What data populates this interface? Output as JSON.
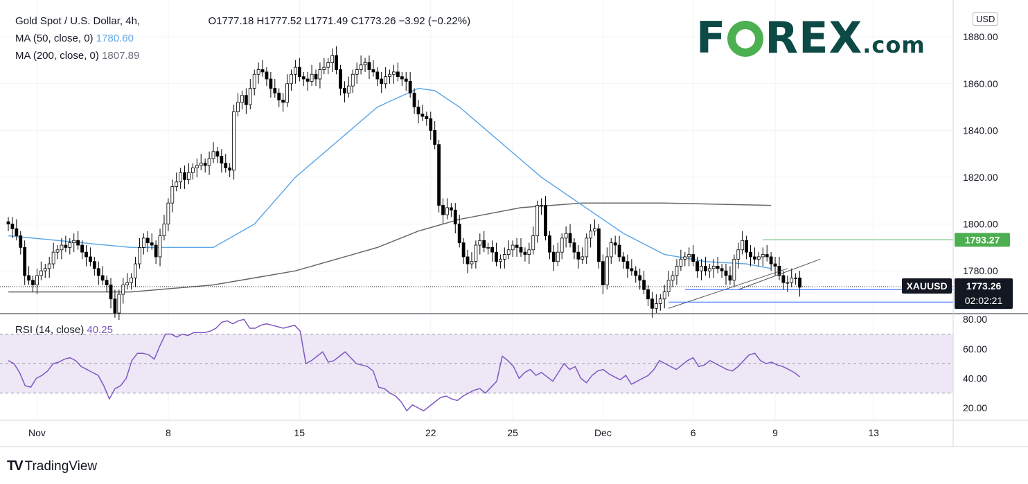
{
  "legend": {
    "symbol": "Gold Spot / U.S. Dollar, 4h,",
    "ohlc": "O1777.18  H1777.52  L1771.49  C1773.26  −3.92 (−0.22%)",
    "ma50_label": "MA (50, close, 0)",
    "ma50_value": "1780.60",
    "ma200_label": "MA (200, close, 0)",
    "ma200_value": "1807.89",
    "rsi_label": "RSI (14, close)",
    "rsi_value": "40.25"
  },
  "brand": {
    "prefix": "F",
    "suffix": "REX",
    "dotcom": ".com"
  },
  "currency": "USD",
  "footer_brand": "TradingView",
  "colors": {
    "up_candle": "#ffffff",
    "down_candle": "#000000",
    "ma50": "#5fa8e8",
    "ma200": "#666666",
    "rsi": "#7e57c2",
    "rsi_band": "#ede7f6",
    "green_level": "#4caf50",
    "blue_level": "#2962ff",
    "brand": "#0d4a45"
  },
  "chart_data": {
    "type": "candlestick",
    "title": "Gold Spot / U.S. Dollar, 4h",
    "ylim": [
      1760,
      1880
    ],
    "y_ticks": [
      "1880.00",
      "1860.00",
      "1840.00",
      "1820.00",
      "1800.00",
      "1780.00"
    ],
    "x_ticks": [
      "Nov",
      "8",
      "15",
      "22",
      "25",
      "Dec",
      "6",
      "9",
      "13"
    ],
    "x_tick_index": [
      7,
      39,
      71,
      103,
      123,
      145,
      167,
      187,
      211
    ],
    "closes": [
      1800,
      1798,
      1795,
      1790,
      1778,
      1776,
      1774,
      1778,
      1780,
      1781,
      1783,
      1788,
      1789,
      1791,
      1790,
      1792,
      1793,
      1791,
      1788,
      1786,
      1784,
      1781,
      1778,
      1776,
      1774,
      1768,
      1762,
      1770,
      1774,
      1775,
      1777,
      1783,
      1790,
      1794,
      1792,
      1791,
      1786,
      1795,
      1800,
      1809,
      1816,
      1818,
      1822,
      1819,
      1822,
      1824,
      1825,
      1826,
      1825,
      1828,
      1831,
      1829,
      1826,
      1824,
      1823,
      1848,
      1852,
      1855,
      1851,
      1858,
      1864,
      1866,
      1865,
      1862,
      1858,
      1856,
      1853,
      1852,
      1860,
      1864,
      1867,
      1863,
      1862,
      1861,
      1864,
      1862,
      1866,
      1867,
      1869,
      1872,
      1866,
      1858,
      1856,
      1859,
      1864,
      1866,
      1868,
      1869,
      1866,
      1865,
      1862,
      1860,
      1863,
      1864,
      1865,
      1863,
      1862,
      1861,
      1856,
      1850,
      1847,
      1846,
      1845,
      1840,
      1834,
      1808,
      1804,
      1807,
      1806,
      1800,
      1792,
      1786,
      1783,
      1784,
      1791,
      1793,
      1790,
      1790,
      1788,
      1784,
      1785,
      1787,
      1789,
      1791,
      1790,
      1788,
      1787,
      1789,
      1795,
      1808,
      1808,
      1795,
      1788,
      1784,
      1788,
      1794,
      1796,
      1792,
      1788,
      1785,
      1786,
      1794,
      1797,
      1798,
      1784,
      1774,
      1786,
      1792,
      1791,
      1786,
      1784,
      1781,
      1780,
      1778,
      1776,
      1772,
      1768,
      1764,
      1766,
      1768,
      1771,
      1776,
      1778,
      1782,
      1785,
      1786,
      1787,
      1784,
      1780,
      1782,
      1780,
      1781,
      1782,
      1781,
      1780,
      1778,
      1776,
      1785,
      1789,
      1793,
      1788,
      1786,
      1785,
      1786,
      1787,
      1786,
      1783,
      1782,
      1778,
      1775,
      1775,
      1777,
      1777,
      1773
    ],
    "ma50": [
      [
        0,
        1795
      ],
      [
        30,
        1790
      ],
      [
        50,
        1790
      ],
      [
        60,
        1800
      ],
      [
        70,
        1820
      ],
      [
        80,
        1835
      ],
      [
        90,
        1850
      ],
      [
        100,
        1858
      ],
      [
        104,
        1857
      ],
      [
        110,
        1850
      ],
      [
        120,
        1835
      ],
      [
        130,
        1820
      ],
      [
        140,
        1808
      ],
      [
        150,
        1796
      ],
      [
        160,
        1787
      ],
      [
        170,
        1784
      ],
      [
        180,
        1783
      ],
      [
        186,
        1781
      ]
    ],
    "ma200": [
      [
        0,
        1771
      ],
      [
        30,
        1771
      ],
      [
        50,
        1774
      ],
      [
        70,
        1780
      ],
      [
        90,
        1790
      ],
      [
        100,
        1797
      ],
      [
        110,
        1802
      ],
      [
        125,
        1807
      ],
      [
        140,
        1809
      ],
      [
        160,
        1809
      ],
      [
        186,
        1808
      ]
    ],
    "levels": [
      {
        "label": "1793.27",
        "value": 1793.27,
        "color": "green"
      },
      {
        "label": "1771.98",
        "value": 1771.98,
        "color": "blue"
      },
      {
        "label": "1766.66",
        "value": 1766.66,
        "color": "blue"
      }
    ],
    "current_price": {
      "symbol": "XAUUSD",
      "value": "1773.26",
      "countdown": "02:02:21"
    },
    "rsi": {
      "ylim": [
        15,
        85
      ],
      "y_ticks": [
        "80.00",
        "60.00",
        "40.00",
        "20.00"
      ],
      "band": [
        30,
        70
      ],
      "values": [
        52,
        50,
        44,
        35,
        34,
        40,
        42,
        45,
        50,
        51,
        53,
        54,
        52,
        48,
        46,
        44,
        42,
        35,
        26,
        33,
        35,
        40,
        52,
        57,
        57,
        56,
        53,
        62,
        70,
        70,
        68,
        70,
        69,
        71,
        71,
        71,
        72,
        74,
        78,
        79,
        77,
        79,
        80,
        74,
        74,
        76,
        77,
        76,
        75,
        74,
        75,
        76,
        72,
        50,
        52,
        55,
        58,
        51,
        52,
        55,
        58,
        54,
        50,
        49,
        48,
        45,
        34,
        33,
        30,
        28,
        24,
        18,
        22,
        20,
        18,
        21,
        24,
        27,
        28,
        26,
        25,
        28,
        30,
        32,
        33,
        30,
        34,
        38,
        55,
        52,
        48,
        40,
        44,
        46,
        42,
        44,
        41,
        38,
        44,
        50,
        46,
        48,
        40,
        37,
        42,
        45,
        46,
        43,
        41,
        39,
        42,
        36,
        38,
        40,
        42,
        46,
        52,
        50,
        48,
        46,
        49,
        52,
        54,
        48,
        49,
        52,
        50,
        48,
        46,
        45,
        48,
        52,
        56,
        57,
        52,
        50,
        51,
        49,
        48,
        46,
        44,
        41
      ]
    }
  }
}
